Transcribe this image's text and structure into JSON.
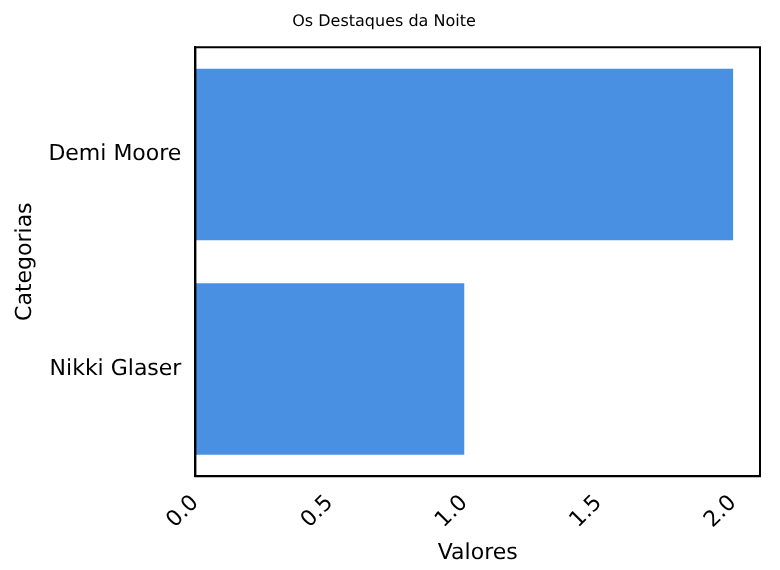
{
  "chart_data": {
    "type": "bar",
    "orientation": "horizontal",
    "title": "Os Destaques da Noite",
    "xlabel": "Valores",
    "ylabel": "Categorias",
    "categories": [
      "Demi Moore",
      "Nikki Glaser"
    ],
    "values": [
      2,
      1
    ],
    "color": "#4a90e2",
    "xlim": [
      0,
      2.1
    ],
    "xticks": [
      {
        "value": 0,
        "label": "0.0"
      },
      {
        "value": 0.5,
        "label": "0.5"
      },
      {
        "value": 1,
        "label": "1.0"
      },
      {
        "value": 1.5,
        "label": "1.5"
      },
      {
        "value": 2,
        "label": "2.0"
      }
    ],
    "grid": false,
    "legend": false
  }
}
